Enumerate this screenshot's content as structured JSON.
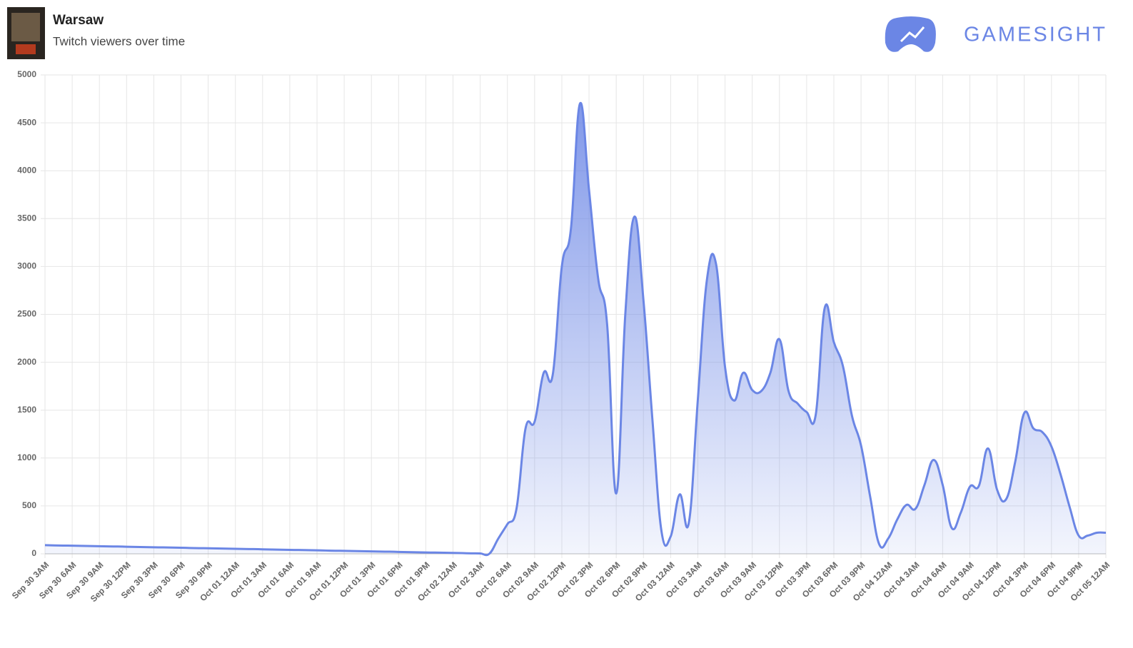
{
  "header": {
    "title": "Warsaw",
    "subtitle": "Twitch viewers over time",
    "brand": "GAMESIGHT"
  },
  "chart_data": {
    "type": "area",
    "color": "#6b86e5",
    "grid": true,
    "ylim": [
      0,
      5000
    ],
    "yticks": [
      0,
      500,
      1000,
      1500,
      2000,
      2500,
      3000,
      3500,
      4000,
      4500,
      5000
    ],
    "categories": [
      "Sep 30 3AM",
      null,
      null,
      "Sep 30 6AM",
      null,
      null,
      "Sep 30 9AM",
      null,
      null,
      "Sep 30 12PM",
      null,
      null,
      "Sep 30 3PM",
      null,
      null,
      "Sep 30 6PM",
      null,
      null,
      "Sep 30 9PM",
      null,
      null,
      "Oct 01 12AM",
      null,
      null,
      "Oct 01 3AM",
      null,
      null,
      "Oct 01 6AM",
      null,
      null,
      "Oct 01 9AM",
      null,
      null,
      "Oct 01 12PM",
      null,
      null,
      "Oct 01 3PM",
      null,
      null,
      "Oct 01 6PM",
      null,
      null,
      "Oct 01 9PM",
      null,
      null,
      "Oct 02 12AM",
      null,
      null,
      "Oct 02 3AM",
      null,
      null,
      "Oct 02 6AM",
      null,
      null,
      "Oct 02 9AM",
      null,
      null,
      "Oct 02 12PM",
      null,
      null,
      "Oct 02 3PM",
      null,
      null,
      "Oct 02 6PM",
      null,
      null,
      "Oct 02 9PM",
      null,
      null,
      "Oct 03 12AM",
      null,
      null,
      "Oct 03 3AM",
      null,
      null,
      "Oct 03 6AM",
      null,
      null,
      "Oct 03 9AM",
      null,
      null,
      "Oct 03 12PM",
      null,
      null,
      "Oct 03 3PM",
      null,
      null,
      "Oct 03 6PM",
      null,
      null,
      "Oct 03 9PM",
      null,
      null,
      "Oct 04 12AM",
      null,
      null,
      "Oct 04 3AM",
      null,
      null,
      "Oct 04 6AM",
      null,
      null,
      "Oct 04 9AM",
      null,
      null,
      "Oct 04 12PM",
      null,
      null,
      "Oct 04 3PM",
      null,
      null,
      "Oct 04 6PM",
      null,
      null,
      "Oct 04 9PM",
      null,
      null,
      "Oct 05 12AM"
    ],
    "values": [
      90,
      88,
      86,
      85,
      83,
      81,
      79,
      77,
      76,
      74,
      72,
      70,
      68,
      67,
      65,
      63,
      61,
      59,
      58,
      56,
      54,
      52,
      50,
      49,
      47,
      45,
      43,
      41,
      40,
      38,
      36,
      34,
      32,
      31,
      29,
      27,
      25,
      23,
      22,
      20,
      18,
      16,
      14,
      13,
      11,
      9,
      7,
      5,
      4,
      0,
      160,
      310,
      470,
      1310,
      1380,
      1890,
      1870,
      3000,
      3390,
      4700,
      3800,
      2880,
      2390,
      630,
      2500,
      3520,
      2650,
      1390,
      230,
      180,
      620,
      320,
      1610,
      2860,
      3030,
      1950,
      1600,
      1890,
      1710,
      1700,
      1890,
      2240,
      1700,
      1570,
      1480,
      1450,
      2570,
      2210,
      1960,
      1440,
      1130,
      600,
      100,
      160,
      360,
      510,
      470,
      720,
      980,
      720,
      270,
      430,
      700,
      710,
      1100,
      670,
      570,
      960,
      1470,
      1310,
      1270,
      1120,
      830,
      490,
      190,
      190,
      220,
      220
    ]
  }
}
